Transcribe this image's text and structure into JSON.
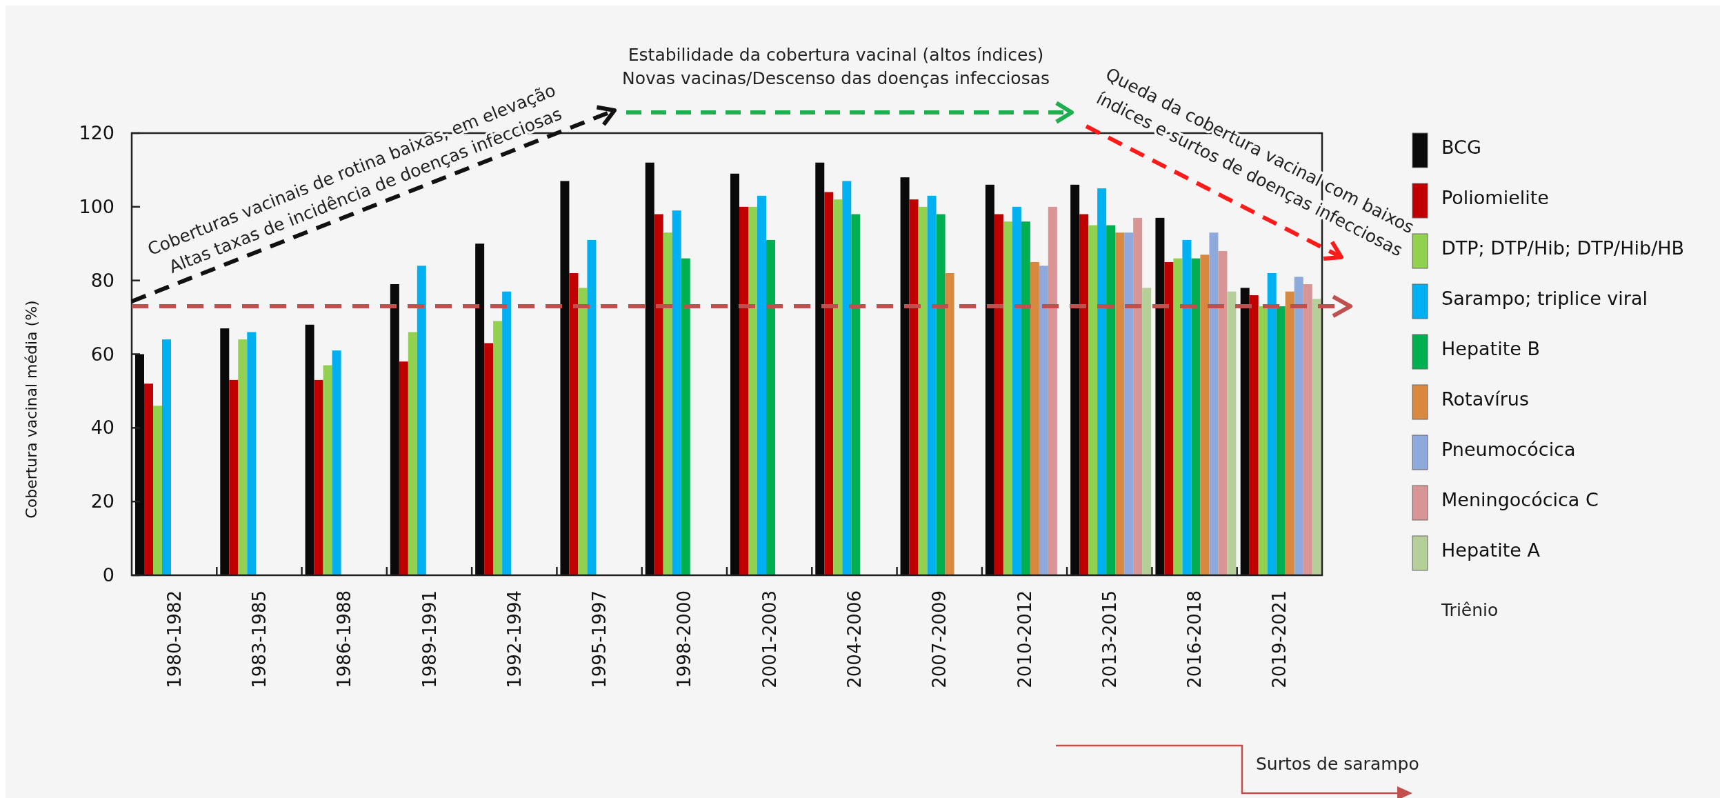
{
  "chart_data": {
    "type": "bar",
    "ylabel": "Cobertura vacinal média (%)",
    "categories": [
      "1980-1982",
      "1983-1985",
      "1986-1988",
      "1989-1991",
      "1992-1994",
      "1995-1997",
      "1998-2000",
      "2001-2003",
      "2004-2006",
      "2007-2009",
      "2010-2012",
      "2013-2015",
      "2016-2018",
      "2019-2021"
    ],
    "series": [
      {
        "name": "BCG",
        "color": "#0a0a0a",
        "values": [
          60,
          67,
          68,
          79,
          90,
          107,
          112,
          109,
          112,
          108,
          106,
          106,
          97,
          78
        ]
      },
      {
        "name": "Poliomielite",
        "color": "#c00000",
        "values": [
          52,
          53,
          53,
          58,
          63,
          82,
          98,
          100,
          104,
          102,
          98,
          98,
          85,
          76
        ]
      },
      {
        "name": "DTP; DTP/Hib; DTP/Hib/HB",
        "color": "#92d050",
        "values": [
          46,
          64,
          57,
          66,
          69,
          78,
          93,
          100,
          102,
          100,
          96,
          95,
          86,
          73
        ]
      },
      {
        "name": "Sarampo; triplice viral",
        "color": "#00b0f0",
        "values": [
          64,
          66,
          61,
          84,
          77,
          91,
          99,
          103,
          107,
          103,
          100,
          105,
          91,
          82
        ]
      },
      {
        "name": "Hepatite B",
        "color": "#00b050",
        "values": [
          null,
          null,
          null,
          null,
          null,
          null,
          86,
          91,
          98,
          98,
          96,
          95,
          86,
          73
        ]
      },
      {
        "name": "Rotavírus",
        "color": "#d9893f",
        "values": [
          null,
          null,
          null,
          null,
          null,
          null,
          null,
          null,
          null,
          82,
          85,
          93,
          87,
          77
        ]
      },
      {
        "name": "Pneumocócica",
        "color": "#8ea9db",
        "values": [
          null,
          null,
          null,
          null,
          null,
          null,
          null,
          null,
          null,
          null,
          84,
          93,
          93,
          81
        ]
      },
      {
        "name": "Meningocócica C",
        "color": "#d79595",
        "values": [
          null,
          null,
          null,
          null,
          null,
          null,
          null,
          null,
          null,
          null,
          100,
          97,
          88,
          79
        ]
      },
      {
        "name": "Hepatite A",
        "color": "#b6cf98",
        "values": [
          null,
          null,
          null,
          null,
          null,
          null,
          null,
          null,
          null,
          null,
          null,
          78,
          77,
          75
        ]
      }
    ],
    "ylim": [
      0,
      120
    ],
    "yticks": [
      0,
      20,
      40,
      60,
      80,
      100,
      120
    ],
    "ref_lines": [
      {
        "axis": "y",
        "value": 73,
        "label": null,
        "color": "#c0504d",
        "line_style": "dashed"
      }
    ],
    "annotations": [
      "Coberturas vacinais de rotina baixas, em elevação",
      "Altas taxas de incidência de doenças infecciosas",
      "Estabilidade da cobertura vacinal (altos índices)",
      "Novas vacinas/Descenso das doenças infecciosas",
      "Queda da cobertura vacinal com baixos",
      "índices e surtos de doenças infecciosas",
      "Surtos de sarampo",
      "Triênio"
    ],
    "legend": "right"
  }
}
